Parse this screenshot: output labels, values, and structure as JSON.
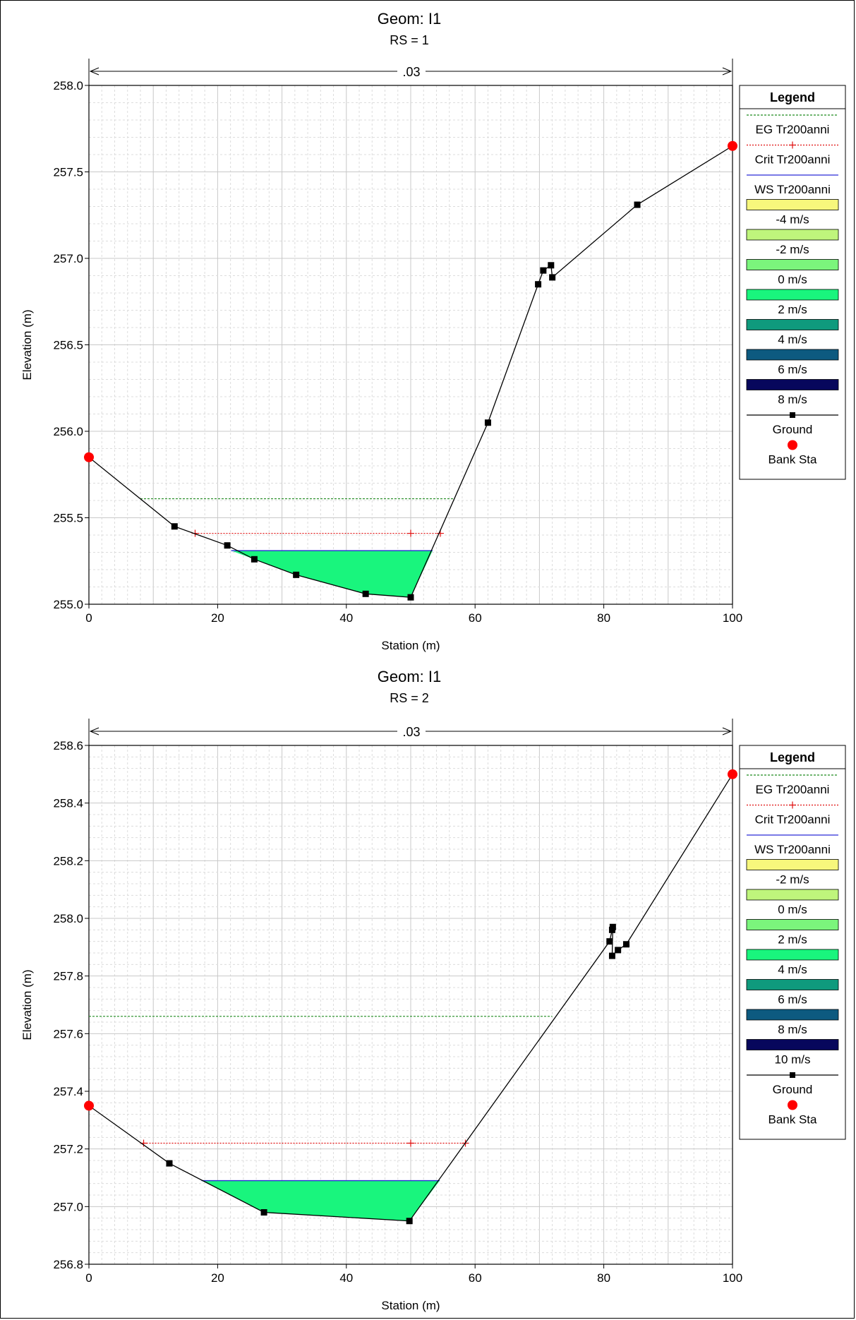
{
  "chart_data": [
    {
      "type": "line",
      "title": "Geom: I1",
      "subtitle": "RS = 1",
      "xlabel": "Station (m)",
      "ylabel": "Elevation (m)",
      "xlim": [
        0,
        100
      ],
      "ylim": [
        255.0,
        258.0
      ],
      "xticks": [
        "0",
        "20",
        "40",
        "60",
        "80",
        "100"
      ],
      "yticks": [
        "255.0",
        "255.5",
        "256.0",
        "256.5",
        "257.0",
        "257.5",
        "258.0"
      ],
      "manning_label": ".03",
      "grid": true,
      "legend_position": "right",
      "legend": {
        "title": "Legend",
        "lines": [
          "EG Tr200anni",
          "Crit Tr200anni",
          "WS Tr200anni"
        ],
        "velocity_classes": [
          "-4 m/s",
          "-2 m/s",
          "0 m/s",
          "2 m/s",
          "4 m/s",
          "6 m/s",
          "8 m/s"
        ],
        "markers": [
          "Ground",
          "Bank Sta"
        ]
      },
      "series": [
        {
          "name": "Ground",
          "x": [
            0,
            13.3,
            21.5,
            25.7,
            32.2,
            43.0,
            50.0,
            62.0,
            69.8,
            70.6,
            71.8,
            72.0,
            85.2,
            100
          ],
          "y": [
            255.85,
            255.45,
            255.34,
            255.26,
            255.17,
            255.06,
            255.04,
            256.05,
            256.85,
            256.93,
            256.96,
            256.89,
            257.31,
            257.65
          ]
        },
        {
          "name": "Bank Sta",
          "x": [
            0,
            100
          ],
          "y": [
            255.85,
            257.65
          ]
        },
        {
          "name": "EG Tr200anni",
          "x": [
            8.0,
            56.6
          ],
          "y": [
            255.61,
            255.61
          ]
        },
        {
          "name": "Crit Tr200anni",
          "x": [
            16.5,
            50.0,
            54.6
          ],
          "y": [
            255.41,
            255.41,
            255.41
          ]
        },
        {
          "name": "WS Tr200anni",
          "x": [
            22.1,
            53.4
          ],
          "y": [
            255.31,
            255.31
          ]
        }
      ]
    },
    {
      "type": "line",
      "title": "Geom: I1",
      "subtitle": "RS = 2",
      "xlabel": "Station (m)",
      "ylabel": "Elevation (m)",
      "xlim": [
        0,
        100
      ],
      "ylim": [
        256.8,
        258.6
      ],
      "xticks": [
        "0",
        "20",
        "40",
        "60",
        "80",
        "100"
      ],
      "yticks": [
        "256.8",
        "257.0",
        "257.2",
        "257.4",
        "257.6",
        "257.8",
        "258.0",
        "258.2",
        "258.4",
        "258.6"
      ],
      "manning_label": ".03",
      "grid": true,
      "legend_position": "right",
      "legend": {
        "title": "Legend",
        "lines": [
          "EG Tr200anni",
          "Crit Tr200anni",
          "WS Tr200anni"
        ],
        "velocity_classes": [
          "-2 m/s",
          "0 m/s",
          "2 m/s",
          "4 m/s",
          "6 m/s",
          "8 m/s",
          "10 m/s"
        ],
        "markers": [
          "Ground",
          "Bank Sta"
        ]
      },
      "series": [
        {
          "name": "Ground",
          "x": [
            0,
            12.5,
            27.2,
            49.8,
            80.9,
            81.3,
            81.4,
            81.3,
            82.2,
            83.5,
            100
          ],
          "y": [
            257.35,
            257.15,
            256.98,
            256.95,
            257.92,
            257.96,
            257.97,
            257.87,
            257.89,
            257.91,
            258.5
          ]
        },
        {
          "name": "Bank Sta",
          "x": [
            0,
            100
          ],
          "y": [
            257.35,
            258.5
          ]
        },
        {
          "name": "EG Tr200anni",
          "x": [
            0,
            72.0
          ],
          "y": [
            257.66,
            257.66
          ]
        },
        {
          "name": "Crit Tr200anni",
          "x": [
            8.5,
            50.0,
            58.5
          ],
          "y": [
            257.22,
            257.22,
            257.22
          ]
        },
        {
          "name": "WS Tr200anni",
          "x": [
            17.5,
            54.5
          ],
          "y": [
            257.09,
            257.09
          ]
        }
      ]
    }
  ],
  "colors": {
    "ground": "#000000",
    "bank": "#ff0000",
    "eg": "#1f8a1f",
    "crit": "#e01010",
    "ws": "#2b2bd6",
    "fill": "#19f57d",
    "velocity": [
      "#f7f77c",
      "#bff57c",
      "#7bf57c",
      "#19f57d",
      "#0f9a7d",
      "#0d5a80",
      "#07075c"
    ]
  }
}
